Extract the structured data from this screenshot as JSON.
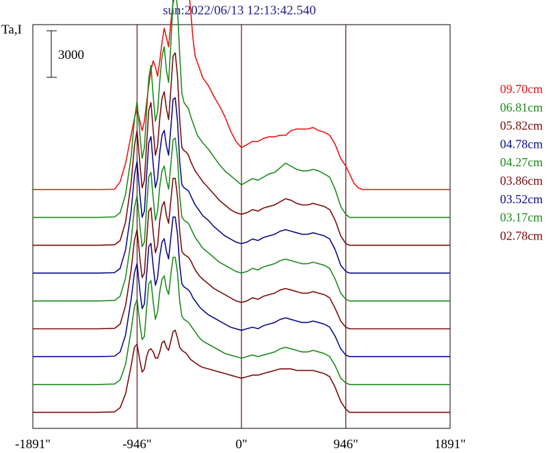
{
  "chart_data": {
    "type": "line",
    "title": "sun:2022/06/13 12:13:42.540",
    "ylabel": "Ta,I",
    "scale_bar_label": "3000",
    "x_ticks": [
      "-1891\"",
      "-946\"",
      "0\"",
      "946\"",
      "1891\""
    ],
    "xlim": [
      -1891,
      1891
    ],
    "vertical_lines": [
      -946,
      0,
      946
    ],
    "grid": false,
    "legend_position": "right",
    "x": [
      -1891,
      -1700,
      -1500,
      -1300,
      -1150,
      -1100,
      -1050,
      -1000,
      -970,
      -946,
      -920,
      -900,
      -880,
      -860,
      -840,
      -820,
      -800,
      -780,
      -760,
      -740,
      -720,
      -700,
      -680,
      -660,
      -640,
      -620,
      -600,
      -580,
      -560,
      -540,
      -520,
      -500,
      -480,
      -460,
      -440,
      -420,
      -400,
      -380,
      -350,
      -300,
      -250,
      -200,
      -150,
      -100,
      -50,
      0,
      50,
      100,
      150,
      200,
      250,
      300,
      350,
      400,
      450,
      500,
      550,
      600,
      650,
      700,
      750,
      800,
      850,
      900,
      946,
      980,
      1020,
      1060,
      1100,
      1200,
      1400,
      1600,
      1891
    ],
    "series": [
      {
        "name": "09.70cm",
        "color": "#ee1111",
        "values": [
          0,
          0,
          0,
          0,
          20,
          500,
          1700,
          3500,
          4600,
          5200,
          4400,
          3800,
          4400,
          5600,
          6700,
          7700,
          8300,
          7900,
          7300,
          8300,
          9500,
          10400,
          9800,
          9200,
          10800,
          12000,
          12600,
          12900,
          13400,
          13700,
          14300,
          14100,
          13000,
          11500,
          9800,
          8600,
          8200,
          7800,
          7200,
          6700,
          6000,
          5400,
          4700,
          3800,
          3100,
          2700,
          2900,
          3100,
          3100,
          3300,
          3400,
          3400,
          3500,
          3500,
          3800,
          3900,
          3900,
          3900,
          4000,
          3800,
          3700,
          3500,
          2900,
          2000,
          1500,
          1000,
          400,
          100,
          0,
          0,
          0,
          0,
          0
        ]
      },
      {
        "name": "06.81cm",
        "color": "#1a8a1a",
        "values": [
          0,
          0,
          0,
          0,
          30,
          300,
          1500,
          3900,
          6300,
          7500,
          5300,
          3800,
          4500,
          6800,
          9000,
          9800,
          7800,
          6200,
          6800,
          8800,
          10400,
          11000,
          9500,
          8700,
          11200,
          14100,
          14700,
          13500,
          10500,
          8000,
          7400,
          7200,
          7000,
          6500,
          6100,
          5700,
          5300,
          5100,
          4800,
          4400,
          3900,
          3400,
          3000,
          2700,
          2400,
          2100,
          2300,
          2500,
          2400,
          2600,
          2800,
          2900,
          3200,
          3500,
          3300,
          3100,
          3000,
          3000,
          3100,
          3000,
          2800,
          2600,
          1800,
          700,
          200,
          0,
          0,
          0,
          0,
          0,
          0,
          0,
          0
        ]
      },
      {
        "name": "05.82cm",
        "color": "#7a0a0a",
        "values": [
          0,
          0,
          0,
          0,
          30,
          300,
          1500,
          4000,
          6400,
          7400,
          5200,
          3700,
          4200,
          6500,
          8700,
          9200,
          7400,
          5800,
          6400,
          8200,
          9500,
          9900,
          8800,
          8100,
          10100,
          12200,
          12400,
          10900,
          8100,
          6300,
          6100,
          6000,
          5800,
          5400,
          5100,
          4800,
          4600,
          4400,
          4100,
          3700,
          3300,
          2900,
          2600,
          2300,
          2100,
          2000,
          2100,
          2300,
          2200,
          2400,
          2500,
          2600,
          2800,
          3000,
          2900,
          2700,
          2600,
          2600,
          2700,
          2600,
          2500,
          2300,
          1600,
          600,
          100,
          0,
          0,
          0,
          0,
          0,
          0,
          0,
          0
        ]
      },
      {
        "name": "04.78cm",
        "color": "#0a0a8a",
        "values": [
          0,
          0,
          0,
          0,
          30,
          300,
          1500,
          4000,
          6300,
          7200,
          5000,
          3600,
          4000,
          6300,
          8400,
          8800,
          7000,
          5500,
          6100,
          7800,
          8900,
          9200,
          8200,
          7600,
          9400,
          11200,
          11300,
          9800,
          7200,
          5700,
          5500,
          5400,
          5300,
          5000,
          4700,
          4400,
          4200,
          4000,
          3700,
          3400,
          3000,
          2700,
          2400,
          2200,
          2000,
          1900,
          2000,
          2200,
          2100,
          2300,
          2400,
          2500,
          2700,
          2800,
          2700,
          2600,
          2500,
          2500,
          2600,
          2500,
          2400,
          2200,
          1500,
          500,
          100,
          0,
          0,
          0,
          0,
          0,
          0,
          0,
          0
        ]
      },
      {
        "name": "04.27cm",
        "color": "#1a8a1a",
        "values": [
          0,
          0,
          0,
          0,
          30,
          300,
          1500,
          3900,
          6000,
          6800,
          4800,
          3500,
          3800,
          6000,
          8000,
          8300,
          6600,
          5200,
          5800,
          7400,
          8400,
          8700,
          7800,
          7200,
          8800,
          10400,
          10500,
          9200,
          6800,
          5400,
          5200,
          5100,
          5000,
          4700,
          4400,
          4100,
          3900,
          3700,
          3400,
          3100,
          2800,
          2500,
          2300,
          2100,
          1900,
          1800,
          1900,
          2100,
          2000,
          2200,
          2300,
          2400,
          2600,
          2700,
          2600,
          2500,
          2400,
          2400,
          2500,
          2400,
          2300,
          2100,
          1400,
          500,
          100,
          0,
          0,
          0,
          0,
          0,
          0,
          0,
          0
        ]
      },
      {
        "name": "03.86cm",
        "color": "#7a0a0a",
        "values": [
          0,
          0,
          0,
          0,
          30,
          300,
          1500,
          3800,
          5700,
          6400,
          4500,
          3300,
          3600,
          5700,
          7600,
          7800,
          6200,
          4900,
          5400,
          7000,
          7900,
          8200,
          7300,
          6800,
          8300,
          9700,
          9700,
          8500,
          6300,
          5000,
          4800,
          4700,
          4600,
          4400,
          4100,
          3800,
          3600,
          3400,
          3200,
          2900,
          2600,
          2400,
          2200,
          2000,
          1800,
          1700,
          1800,
          2000,
          1900,
          2100,
          2200,
          2300,
          2500,
          2600,
          2500,
          2400,
          2300,
          2300,
          2400,
          2300,
          2200,
          2000,
          1300,
          500,
          100,
          0,
          0,
          0,
          0,
          0,
          0,
          0,
          0
        ]
      },
      {
        "name": "03.52cm",
        "color": "#0a0a8a",
        "values": [
          0,
          0,
          0,
          0,
          30,
          300,
          1400,
          3700,
          5400,
          6000,
          4200,
          3100,
          3400,
          5300,
          7100,
          7300,
          5800,
          4600,
          5100,
          6500,
          7400,
          7600,
          6800,
          6300,
          7700,
          9000,
          9000,
          7900,
          5900,
          4700,
          4500,
          4400,
          4300,
          4100,
          3800,
          3600,
          3400,
          3200,
          3000,
          2700,
          2500,
          2300,
          2100,
          1900,
          1800,
          1700,
          1800,
          1900,
          1800,
          2000,
          2100,
          2200,
          2400,
          2500,
          2400,
          2300,
          2200,
          2200,
          2300,
          2200,
          2100,
          1900,
          1300,
          500,
          100,
          0,
          0,
          0,
          0,
          0,
          0,
          0,
          0
        ]
      },
      {
        "name": "03.17cm",
        "color": "#1a8a1a",
        "values": [
          0,
          0,
          0,
          0,
          30,
          300,
          1300,
          3500,
          5000,
          5500,
          3900,
          2900,
          3100,
          4900,
          6500,
          6700,
          5300,
          4200,
          4700,
          6000,
          6800,
          7000,
          6200,
          5800,
          7100,
          8200,
          8200,
          7200,
          5400,
          4400,
          4200,
          4100,
          4000,
          3800,
          3600,
          3400,
          3200,
          3000,
          2800,
          2600,
          2400,
          2200,
          2000,
          1900,
          1800,
          1700,
          1800,
          1900,
          1800,
          1900,
          2000,
          2100,
          2300,
          2400,
          2300,
          2200,
          2100,
          2100,
          2200,
          2100,
          2000,
          1800,
          1200,
          400,
          100,
          0,
          0,
          0,
          0,
          0,
          0,
          0,
          0
        ]
      },
      {
        "name": "02.78cm",
        "color": "#7a0a0a",
        "values": [
          0,
          0,
          0,
          0,
          30,
          300,
          1200,
          3000,
          4200,
          4400,
          3300,
          2600,
          2800,
          3600,
          4000,
          4100,
          3900,
          3500,
          3500,
          3900,
          4500,
          4600,
          4200,
          4000,
          4600,
          5200,
          5300,
          4800,
          4200,
          4000,
          3900,
          3800,
          3600,
          3400,
          3300,
          3200,
          3100,
          3000,
          2900,
          2800,
          2700,
          2600,
          2500,
          2400,
          2300,
          2200,
          2300,
          2400,
          2400,
          2500,
          2600,
          2700,
          2800,
          2800,
          2800,
          2700,
          2700,
          2700,
          2700,
          2600,
          2500,
          2300,
          1600,
          700,
          200,
          0,
          0,
          0,
          0,
          0,
          0,
          0,
          0
        ]
      }
    ]
  }
}
